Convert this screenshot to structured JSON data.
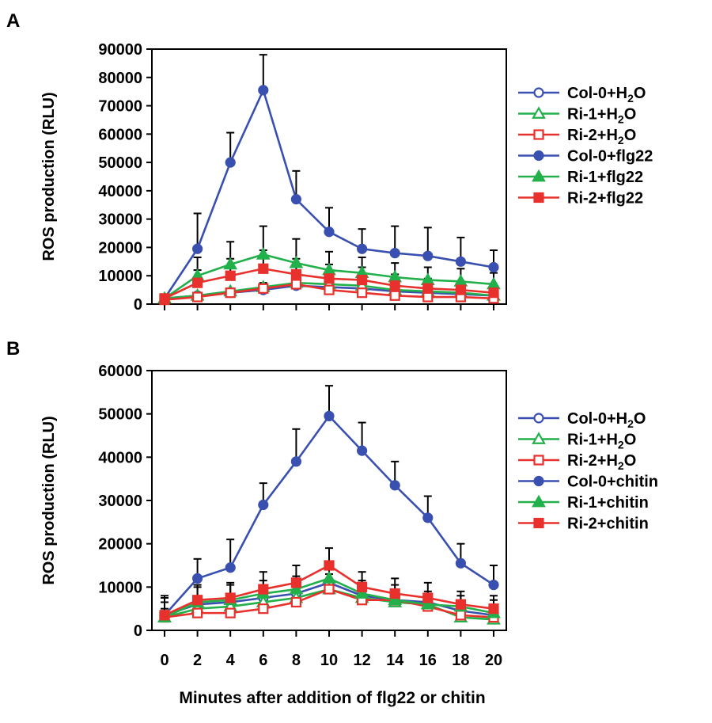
{
  "figure": {
    "xlabel": "Minutes after addition of flg22 or chitin"
  },
  "chart_data": [
    {
      "type": "line",
      "panel_label": "A",
      "ylabel": "ROS production (RLU)",
      "ylim": [
        0,
        90000
      ],
      "yticks": [
        0,
        10000,
        20000,
        30000,
        40000,
        50000,
        60000,
        70000,
        80000,
        90000
      ],
      "x": [
        0,
        2,
        4,
        6,
        8,
        10,
        12,
        14,
        16,
        18,
        20
      ],
      "xticks": [
        0,
        2,
        4,
        6,
        8,
        10,
        12,
        14,
        16,
        18,
        20
      ],
      "series": [
        {
          "name": "Col-0+H2O",
          "legend": {
            "pre": "Col-0+H",
            "sub": "2",
            "post": "O"
          },
          "color": "#3a50b0",
          "marker": "circle",
          "filled": false,
          "values": [
            2000,
            3000,
            4000,
            5000,
            6500,
            6000,
            5500,
            4500,
            4000,
            3500,
            3000
          ],
          "errors": [
            1000,
            1000,
            1000,
            1500,
            1500,
            1500,
            1500,
            1000,
            1000,
            1000,
            1000
          ]
        },
        {
          "name": "Ri-1+H2O",
          "legend": {
            "pre": "Ri-1+H",
            "sub": "2",
            "post": "O"
          },
          "color": "#22b04a",
          "marker": "triangle",
          "filled": false,
          "values": [
            2000,
            3000,
            4500,
            6000,
            7500,
            7000,
            6500,
            5000,
            4500,
            4000,
            3000
          ],
          "errors": [
            1000,
            1000,
            1000,
            1500,
            1500,
            1500,
            1500,
            1000,
            1000,
            1000,
            1000
          ]
        },
        {
          "name": "Ri-2+H2O",
          "legend": {
            "pre": "Ri-2+H",
            "sub": "2",
            "post": "O"
          },
          "color": "#e8302c",
          "marker": "square",
          "filled": false,
          "values": [
            1500,
            2500,
            4000,
            5500,
            7000,
            5000,
            4000,
            3000,
            2500,
            2500,
            2000
          ],
          "errors": [
            800,
            1000,
            1000,
            1500,
            1500,
            1500,
            1000,
            1000,
            1000,
            1000,
            800
          ]
        },
        {
          "name": "Col-0+flg22",
          "legend": {
            "pre": "Col-0+flg22",
            "sub": "",
            "post": ""
          },
          "color": "#3a50b0",
          "marker": "circle",
          "filled": true,
          "values": [
            2000,
            19500,
            50000,
            75500,
            37000,
            25500,
            19500,
            18000,
            17000,
            15000,
            13000
          ],
          "errors": [
            1000,
            12500,
            10500,
            12500,
            10000,
            8500,
            7000,
            9500,
            10000,
            8500,
            6000
          ]
        },
        {
          "name": "Ri-1+flg22",
          "legend": {
            "pre": "Ri-1+flg22",
            "sub": "",
            "post": ""
          },
          "color": "#22b04a",
          "marker": "triangle",
          "filled": true,
          "values": [
            2000,
            10000,
            14000,
            17500,
            14500,
            12000,
            11000,
            9500,
            8500,
            8000,
            7000
          ],
          "errors": [
            1500,
            6500,
            8000,
            10000,
            8500,
            6500,
            5500,
            5000,
            4500,
            4500,
            4000
          ]
        },
        {
          "name": "Ri-2+flg22",
          "legend": {
            "pre": "Ri-2+flg22",
            "sub": "",
            "post": ""
          },
          "color": "#e8302c",
          "marker": "square",
          "filled": true,
          "values": [
            2000,
            7500,
            10000,
            12500,
            10500,
            9000,
            8500,
            6500,
            5500,
            5000,
            4000
          ],
          "errors": [
            1000,
            4500,
            6000,
            6500,
            5500,
            5000,
            4500,
            4000,
            3500,
            3000,
            2500
          ]
        }
      ]
    },
    {
      "type": "line",
      "panel_label": "B",
      "ylabel": "ROS production (RLU)",
      "ylim": [
        0,
        60000
      ],
      "yticks": [
        0,
        10000,
        20000,
        30000,
        40000,
        50000,
        60000
      ],
      "x": [
        0,
        2,
        4,
        6,
        8,
        10,
        12,
        14,
        16,
        18,
        20
      ],
      "xticks": [
        0,
        2,
        4,
        6,
        8,
        10,
        12,
        14,
        16,
        18,
        20
      ],
      "series": [
        {
          "name": "Col-0+H2O",
          "legend": {
            "pre": "Col-0+H",
            "sub": "2",
            "post": "O"
          },
          "color": "#3a50b0",
          "marker": "circle",
          "filled": false,
          "values": [
            3500,
            6000,
            6500,
            7500,
            8500,
            11000,
            8000,
            7000,
            6500,
            4500,
            3500
          ],
          "errors": [
            1500,
            1500,
            1500,
            1500,
            1500,
            2000,
            1500,
            1500,
            1500,
            1500,
            1000
          ]
        },
        {
          "name": "Ri-1+H2O",
          "legend": {
            "pre": "Ri-1+H",
            "sub": "2",
            "post": "O"
          },
          "color": "#22b04a",
          "marker": "triangle",
          "filled": false,
          "values": [
            3000,
            5000,
            5500,
            6500,
            7500,
            9500,
            7500,
            6500,
            6000,
            3000,
            2500
          ],
          "errors": [
            1500,
            1500,
            1500,
            1500,
            1500,
            2000,
            1500,
            1500,
            1500,
            1000,
            1000
          ]
        },
        {
          "name": "Ri-2+H2O",
          "legend": {
            "pre": "Ri-2+H",
            "sub": "2",
            "post": "O"
          },
          "color": "#e8302c",
          "marker": "square",
          "filled": false,
          "values": [
            3000,
            4000,
            4000,
            5000,
            6500,
            9500,
            7000,
            7000,
            5500,
            3500,
            3000
          ],
          "errors": [
            1500,
            1500,
            1500,
            1500,
            1500,
            2000,
            1500,
            1500,
            1500,
            1000,
            1000
          ]
        },
        {
          "name": "Col-0+chitin",
          "legend": {
            "pre": "Col-0+chitin",
            "sub": "",
            "post": ""
          },
          "color": "#3a50b0",
          "marker": "circle",
          "filled": true,
          "values": [
            3500,
            12000,
            14500,
            29000,
            39000,
            49500,
            41500,
            33500,
            26000,
            15500,
            10500
          ],
          "errors": [
            4500,
            4500,
            6500,
            5000,
            7500,
            7000,
            6500,
            5500,
            5000,
            4500,
            4500
          ]
        },
        {
          "name": "Ri-1+chitin",
          "legend": {
            "pre": "Ri-1+chitin",
            "sub": "",
            "post": ""
          },
          "color": "#22b04a",
          "marker": "triangle",
          "filled": true,
          "values": [
            3000,
            6500,
            7000,
            8500,
            9500,
            12000,
            8500,
            7000,
            6000,
            5500,
            4000
          ],
          "errors": [
            3500,
            3500,
            3500,
            3000,
            3000,
            3000,
            3000,
            3500,
            3000,
            2500,
            3000
          ]
        },
        {
          "name": "Ri-2+chitin",
          "legend": {
            "pre": "Ri-2+chitin",
            "sub": "",
            "post": ""
          },
          "color": "#e8302c",
          "marker": "square",
          "filled": true,
          "values": [
            3500,
            7000,
            7500,
            9500,
            11000,
            15000,
            10000,
            8500,
            7500,
            6000,
            5000
          ],
          "errors": [
            4000,
            3500,
            3500,
            4000,
            4000,
            4000,
            3500,
            3500,
            3500,
            3000,
            3000
          ]
        }
      ]
    }
  ]
}
